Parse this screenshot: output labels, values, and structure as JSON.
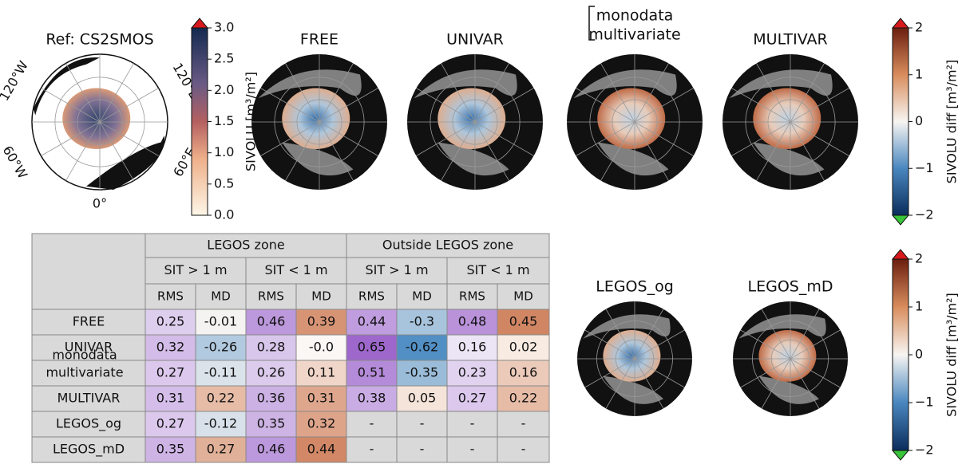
{
  "maps": [
    {
      "title": "Ref: CS2SMOS",
      "labels": [
        "120°W",
        "120°E",
        "60°W",
        "60°E",
        "0°"
      ]
    },
    {
      "title": "FREE"
    },
    {
      "title": "UNIVAR"
    },
    {
      "title_lines": [
        "monodata",
        "multivariate"
      ]
    },
    {
      "title": "MULTIVAR"
    },
    {
      "title": "LEGOS_og"
    },
    {
      "title": "LEGOS_mD"
    }
  ],
  "colorbars": [
    {
      "label": "SIVOLU [m³/m²]",
      "lim": [
        0,
        3
      ],
      "ticks": [
        {
          "value": 0,
          "label": "0.0"
        },
        0.5,
        {
          "value": 1,
          "label": "1.0"
        },
        1.5,
        {
          "value": 2,
          "label": "2.0"
        },
        2.5,
        {
          "value": 3,
          "label": "3.0"
        }
      ]
    },
    {
      "label": "SIVOLU diff [m³/m²]",
      "lim": [
        -2,
        2
      ],
      "ticks": [
        {
          "value": -2,
          "label": "−2"
        },
        {
          "value": -1,
          "label": "−1"
        },
        0,
        1,
        2
      ]
    },
    {
      "label": "SIVOLU diff [m³/m²]",
      "lim": [
        -2,
        2
      ],
      "ticks": [
        {
          "value": -2,
          "label": "−2"
        },
        {
          "value": -1,
          "label": "−1"
        },
        0,
        1,
        2
      ]
    }
  ],
  "table": {
    "zones": [
      "LEGOS zone",
      "Outside LEGOS zone"
    ],
    "sit": [
      "SIT > 1 m",
      "SIT < 1 m",
      "SIT > 1 m",
      "SIT < 1 m"
    ],
    "metrics": [
      "RMS",
      "MD",
      "RMS",
      "MD",
      "RMS",
      "MD",
      "RMS",
      "MD"
    ],
    "rows": [
      {
        "name": "FREE",
        "values": [
          0.25,
          -0.01,
          0.46,
          0.39,
          0.44,
          -0.3,
          0.48,
          0.45
        ]
      },
      {
        "name": "UNIVAR",
        "values": [
          0.32,
          -0.26,
          0.28,
          "-0.0",
          0.65,
          -0.62,
          0.16,
          0.02
        ]
      },
      {
        "name_lines": [
          "monodata",
          "multivariate"
        ],
        "values": [
          0.27,
          -0.11,
          0.26,
          0.11,
          0.51,
          -0.35,
          0.23,
          0.16
        ]
      },
      {
        "name": "MULTIVAR",
        "values": [
          0.31,
          0.22,
          0.36,
          0.31,
          0.38,
          0.05,
          0.27,
          0.22
        ]
      },
      {
        "name": "LEGOS_og",
        "values": [
          0.27,
          -0.12,
          0.35,
          0.32,
          "-",
          "-",
          "-",
          "-"
        ]
      },
      {
        "name": "LEGOS_mD",
        "values": [
          0.35,
          0.27,
          0.46,
          0.44,
          "-",
          "-",
          "-",
          "-"
        ]
      }
    ]
  }
}
